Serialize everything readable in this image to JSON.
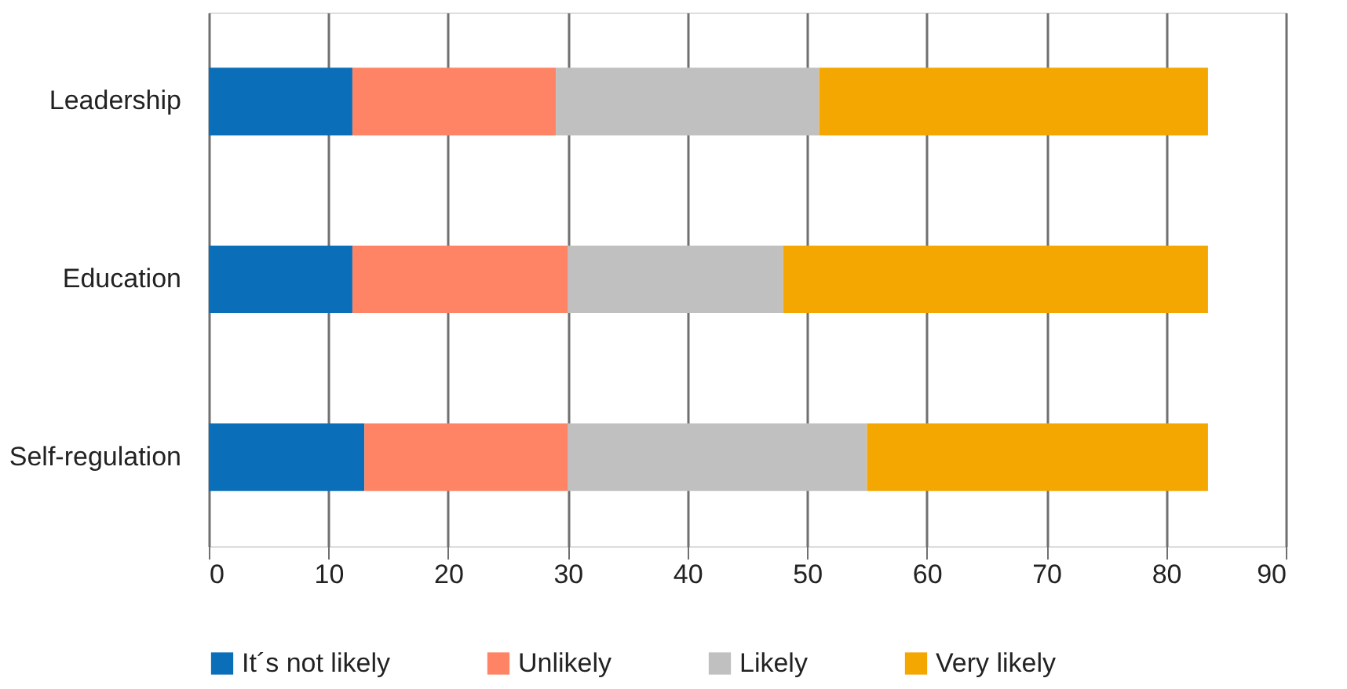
{
  "chart_data": {
    "type": "bar",
    "orientation": "horizontal",
    "stacked": true,
    "categories": [
      "Leadership",
      "Education",
      "Self-regulation"
    ],
    "series": [
      {
        "name": "It´s not likely",
        "color": "#0b6eb8",
        "values": [
          12,
          12,
          13
        ]
      },
      {
        "name": "Unlikely",
        "color": "#ff8466",
        "values": [
          17,
          18,
          17
        ]
      },
      {
        "name": "Likely",
        "color": "#c0c0c0",
        "values": [
          22,
          18,
          25
        ]
      },
      {
        "name": "Very likely",
        "color": "#f4a700",
        "values": [
          32.5,
          35.5,
          28.5
        ]
      }
    ],
    "xlim": [
      0,
      90
    ],
    "xticks": [
      0,
      10,
      20,
      30,
      40,
      50,
      60,
      70,
      80,
      90
    ],
    "grid": "x",
    "legend": "bottom"
  }
}
